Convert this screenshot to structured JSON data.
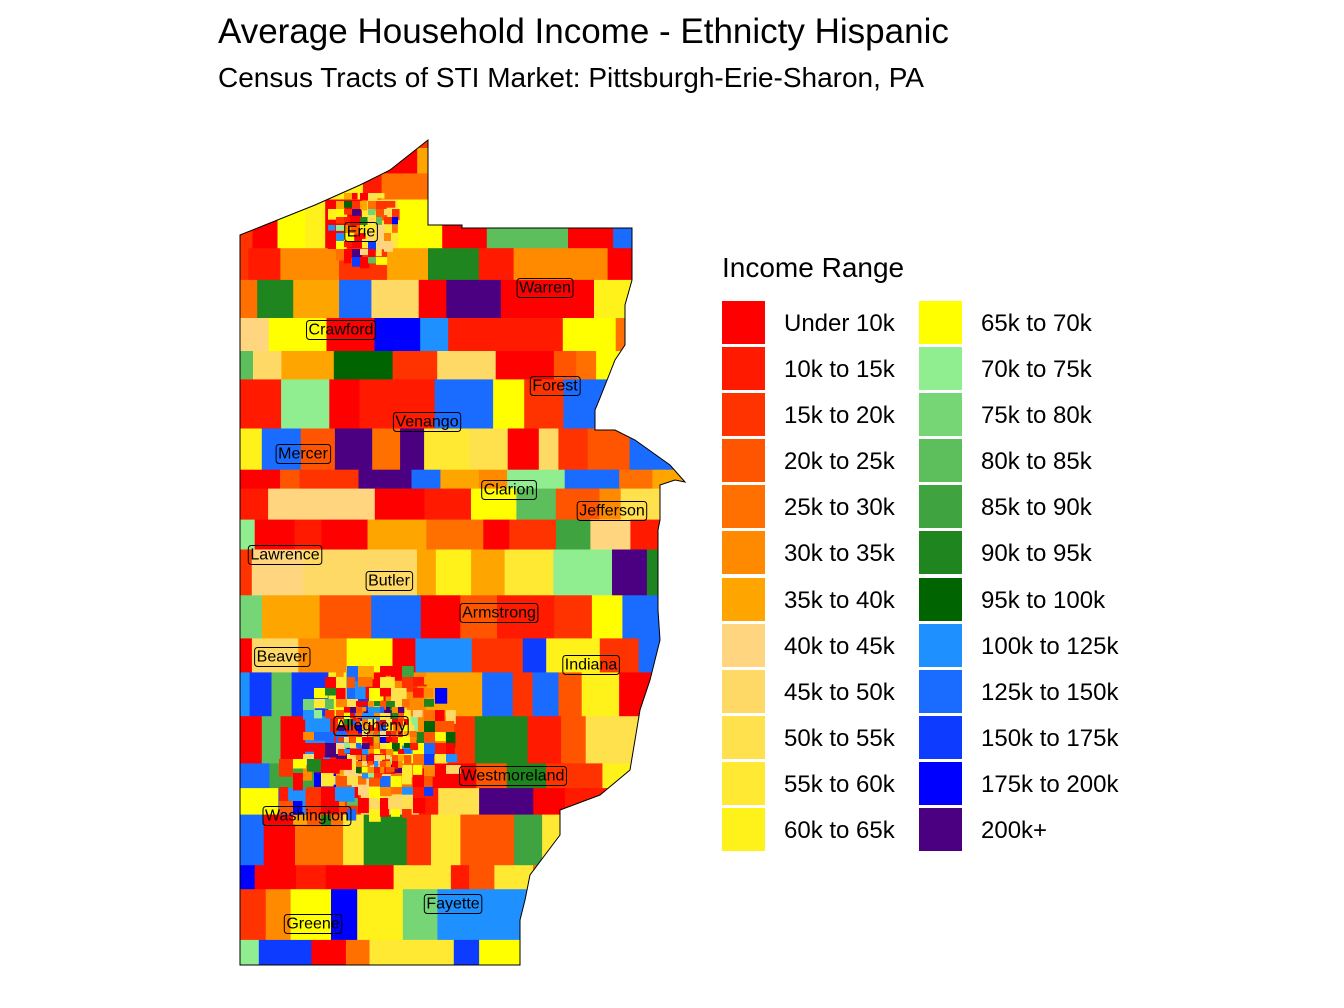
{
  "title": "Average Household Income - Ethnicty Hispanic",
  "subtitle": "Census Tracts of STI Market: Pittsburgh-Erie-Sharon, PA",
  "legend": {
    "title": "Income Range",
    "items": [
      {
        "label": "Under 10k",
        "color": "#FF0000"
      },
      {
        "label": "10k to 15k",
        "color": "#FF1A00"
      },
      {
        "label": "15k to 20k",
        "color": "#FF3300"
      },
      {
        "label": "20k to 25k",
        "color": "#FF5500"
      },
      {
        "label": "25k to 30k",
        "color": "#FF7000"
      },
      {
        "label": "30k to 35k",
        "color": "#FF8A00"
      },
      {
        "label": "35k to 40k",
        "color": "#FFA500"
      },
      {
        "label": "40k to 45k",
        "color": "#FFD580"
      },
      {
        "label": "45k to 50k",
        "color": "#FFD966"
      },
      {
        "label": "50k to 55k",
        "color": "#FFE14D"
      },
      {
        "label": "55k to 60k",
        "color": "#FFE933"
      },
      {
        "label": "60k to 65k",
        "color": "#FFF11A"
      },
      {
        "label": "65k to 70k",
        "color": "#FFFF00"
      },
      {
        "label": "70k to 75k",
        "color": "#90EE90"
      },
      {
        "label": "75k to 80k",
        "color": "#76D676"
      },
      {
        "label": "80k to 85k",
        "color": "#5CBF5C"
      },
      {
        "label": "85k to 90k",
        "color": "#3FA33F"
      },
      {
        "label": "90k to 95k",
        "color": "#1F861F"
      },
      {
        "label": "95k to 100k",
        "color": "#006400"
      },
      {
        "label": "100k to 125k",
        "color": "#1E90FF"
      },
      {
        "label": "125k to 150k",
        "color": "#1A6BFF"
      },
      {
        "label": "150k to 175k",
        "color": "#0D3BFF"
      },
      {
        "label": "175k to 200k",
        "color": "#0000FF"
      },
      {
        "label": "200k+",
        "color": "#4B0082"
      }
    ]
  },
  "counties": [
    "Erie",
    "Warren",
    "Crawford",
    "Forest",
    "Venango",
    "Mercer",
    "Clarion",
    "Jefferson",
    "Lawrence",
    "Butler",
    "Armstrong",
    "Beaver",
    "Indiana",
    "Allegheny",
    "Westmoreland",
    "Washington",
    "Fayette",
    "Greene"
  ]
}
